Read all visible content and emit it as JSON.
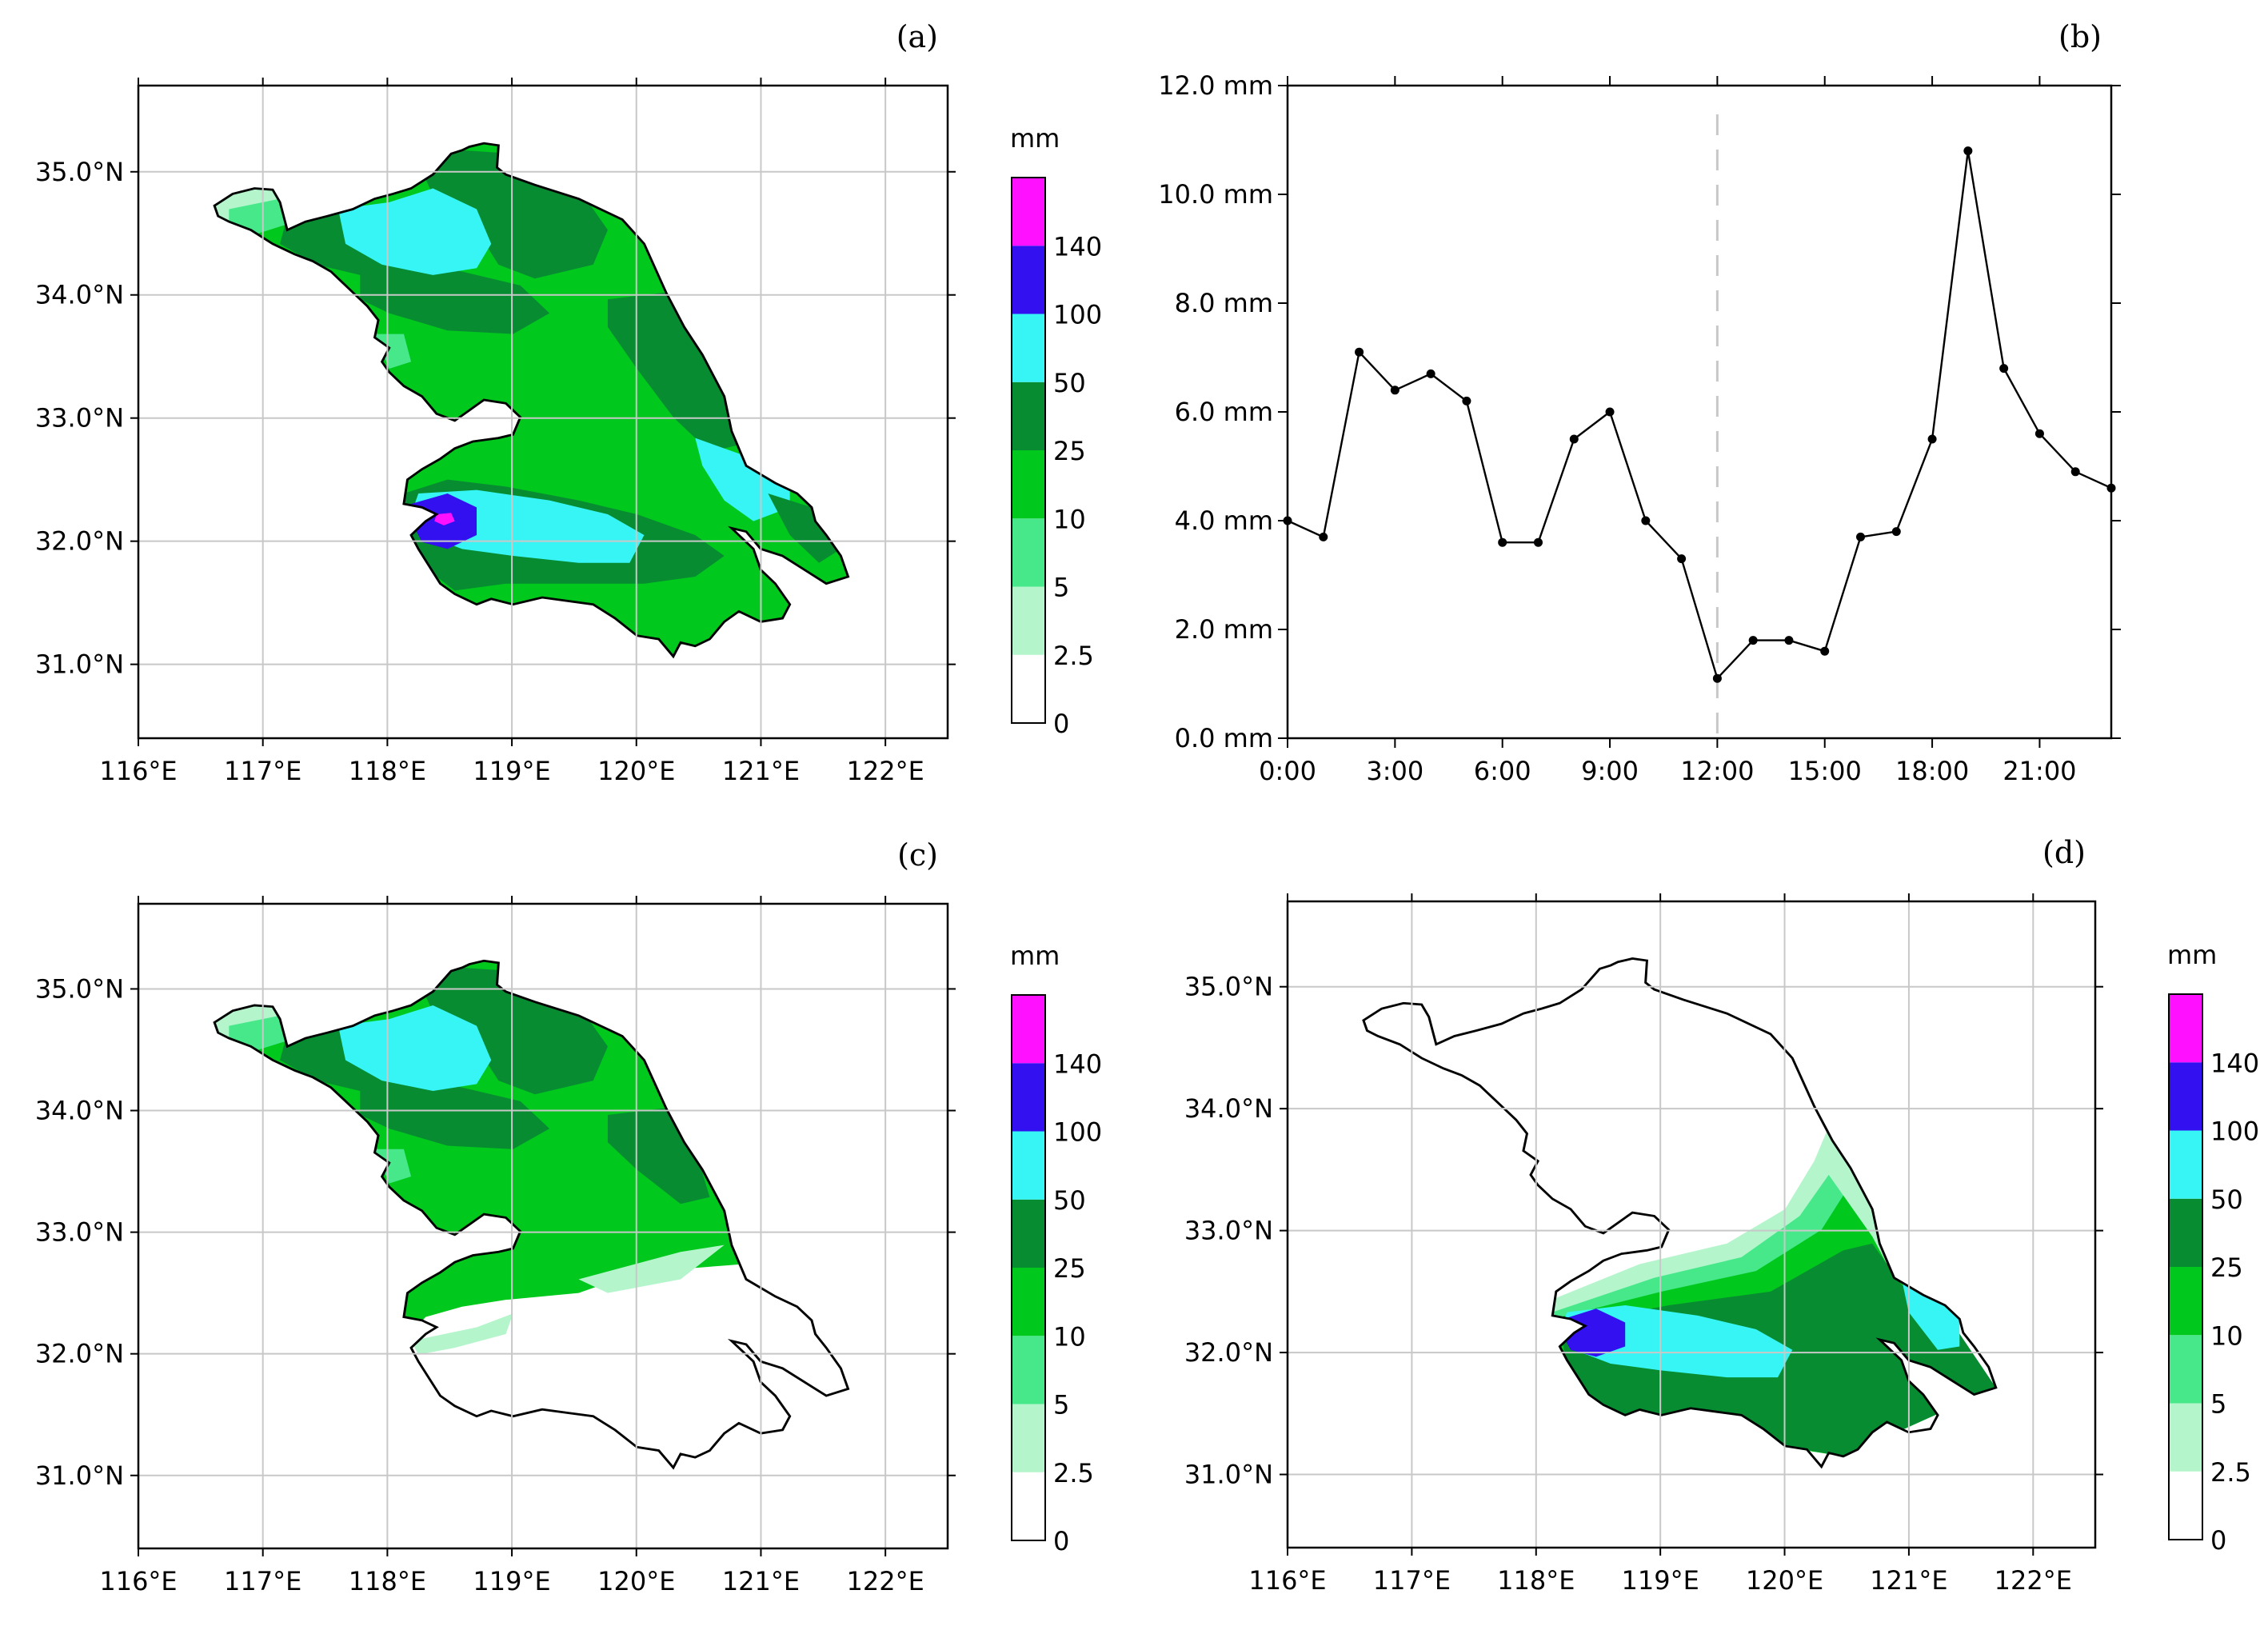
{
  "panels": {
    "a": {
      "label": "(a)"
    },
    "b": {
      "label": "(b)"
    },
    "c": {
      "label": "(c)"
    },
    "d": {
      "label": "(d)"
    }
  },
  "map": {
    "lon_ticks": [
      "116°E",
      "117°E",
      "118°E",
      "119°E",
      "120°E",
      "121°E",
      "122°E"
    ],
    "lat_ticks": [
      "31.0°N",
      "32.0°N",
      "33.0°N",
      "34.0°N",
      "35.0°N"
    ],
    "lon_range": [
      116,
      122.5
    ],
    "lat_range": [
      30.4,
      35.7
    ]
  },
  "colorbar": {
    "unit": "mm",
    "levels": [
      "0",
      "2.5",
      "5",
      "10",
      "25",
      "50",
      "100",
      "140"
    ],
    "colors": [
      "#ffffff",
      "#b4f5cc",
      "#46e88a",
      "#00c81c",
      "#078c32",
      "#38f5f5",
      "#3310f0",
      "#ff10ff"
    ]
  },
  "region_colors": {
    "c_light1": "#b4f5cc",
    "c_light2": "#46e88a",
    "c_mid": "#00c81c",
    "c_dark": "#078c32",
    "c_cyan": "#38f5f5",
    "c_blue": "#3310f0",
    "c_magenta": "#ff10ff"
  },
  "chart_data": [
    {
      "panel": "b",
      "type": "line",
      "title": "",
      "xlabel": "",
      "ylabel": "",
      "x": [
        0,
        1,
        2,
        3,
        4,
        5,
        6,
        7,
        8,
        9,
        10,
        11,
        12,
        13,
        14,
        15,
        16,
        17,
        18,
        19,
        20,
        21,
        22,
        23
      ],
      "values": [
        4.0,
        3.7,
        7.1,
        6.4,
        6.7,
        6.2,
        3.6,
        3.6,
        5.5,
        6.0,
        4.0,
        3.3,
        1.1,
        1.8,
        1.8,
        1.6,
        3.7,
        3.8,
        5.5,
        10.8,
        6.8,
        5.6,
        4.9,
        4.6
      ],
      "xlim": [
        0,
        23
      ],
      "ylim": [
        0,
        12
      ],
      "xtick_values": [
        0,
        3,
        6,
        9,
        12,
        15,
        18,
        21
      ],
      "xtick_labels": [
        "0:00",
        "3:00",
        "6:00",
        "9:00",
        "12:00",
        "15:00",
        "18:00",
        "21:00"
      ],
      "ytick_values": [
        0,
        2,
        4,
        6,
        8,
        10,
        12
      ],
      "ytick_labels": [
        "0.0 mm",
        "2.0 mm",
        "4.0 mm",
        "6.0 mm",
        "8.0 mm",
        "10.0 mm",
        "12.0 mm"
      ],
      "reference_line_x": 12
    },
    {
      "panel": "a",
      "type": "heatmap",
      "title": "",
      "note": "filled precipitation contours over Jiangsu province, total"
    },
    {
      "panel": "c",
      "type": "heatmap",
      "title": "",
      "note": "filled precipitation contours, northern part"
    },
    {
      "panel": "d",
      "type": "heatmap",
      "title": "",
      "note": "filled precipitation contours, southern part"
    }
  ]
}
